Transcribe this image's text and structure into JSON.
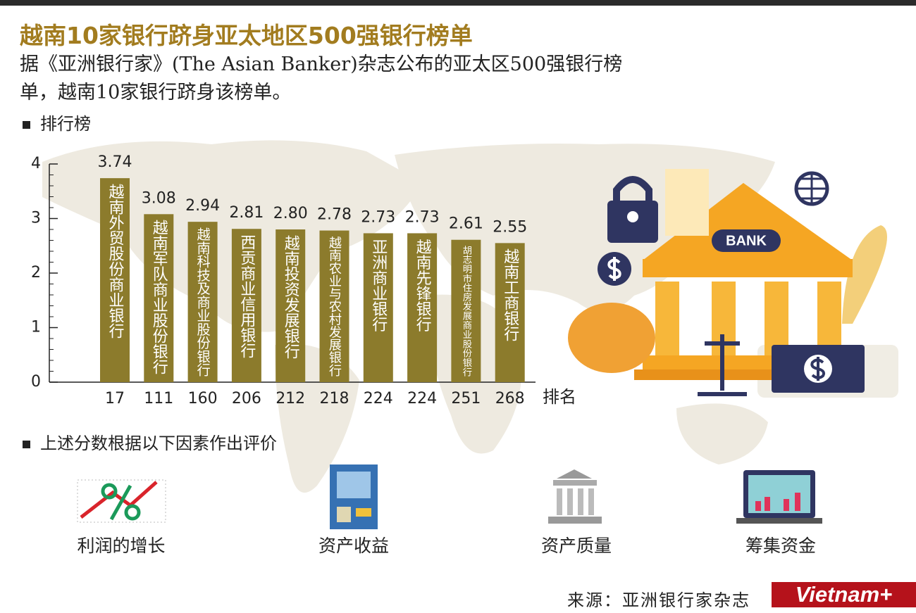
{
  "title": "越南10家银行跻身亚太地区500强银行榜单",
  "subtitle": "据《亚洲银行家》(The Asian Banker)杂志公布的亚太区500强银行榜单，越南10家银行跻身该榜单。",
  "chart_data": {
    "type": "bar",
    "title": "排行榜",
    "categories": [
      "越南外贸股份商业银行",
      "越南军队商业股份银行",
      "越南科技及商业股份银行",
      "西贡商业信用银行",
      "越南投资发展银行",
      "越南农业与农村发展银行",
      "亚洲商业银行",
      "越南先锋银行",
      "胡志明市住房发展商业股份银行",
      "越南工商银行"
    ],
    "values": [
      3.74,
      3.08,
      2.94,
      2.81,
      2.8,
      2.78,
      2.73,
      2.73,
      2.61,
      2.55
    ],
    "value_labels": [
      "3.74",
      "3.08",
      "2.94",
      "2.81",
      "2.80",
      "2.78",
      "2.73",
      "2.73",
      "2.61",
      "2.55"
    ],
    "ranks": [
      17,
      111,
      160,
      206,
      212,
      218,
      224,
      224,
      251,
      268
    ],
    "rank_label": "排名",
    "color": "#8c7b2c",
    "ylim": [
      0,
      4
    ],
    "yticks": [
      0,
      1,
      2,
      3,
      4
    ]
  },
  "bank_sign": "BANK",
  "factors": {
    "title": "上述分数根据以下因素作出评价",
    "items": [
      "利润的增长",
      "资产收益",
      "资产质量",
      "筹集资金"
    ]
  },
  "source": "来源：亚洲银行家杂志",
  "logo": "Vietnam+"
}
